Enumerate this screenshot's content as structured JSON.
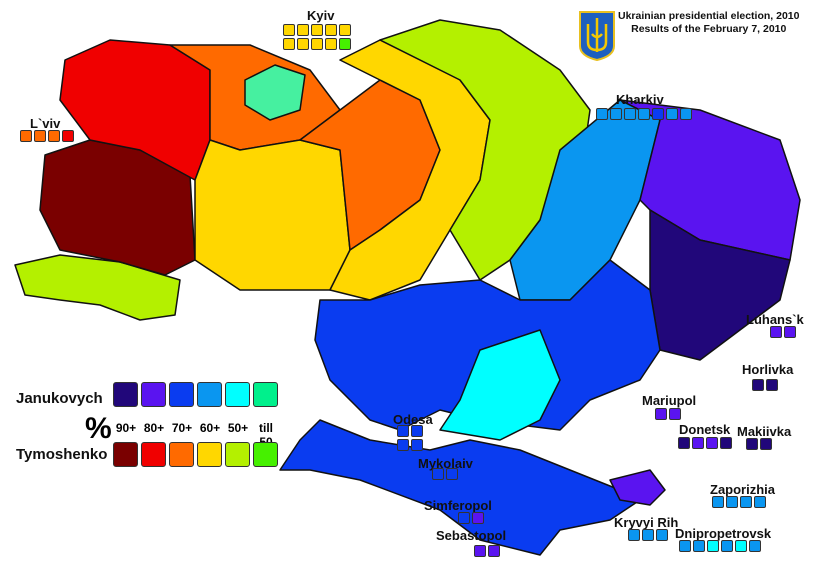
{
  "title": {
    "line1": "Ukrainian presidential election, 2010",
    "line2": "Results of the February 7, 2010"
  },
  "legend": {
    "candidate1": "Janukovych",
    "candidate2": "Tymoshenko",
    "percent_symbol": "%",
    "bins": [
      "90+",
      "80+",
      "70+",
      "60+",
      "50+",
      "till 50"
    ],
    "janukovych_colors": [
      "#21077a",
      "#5a14f0",
      "#0a3cf0",
      "#0a96f0",
      "#00ffff",
      "#00f08c"
    ],
    "tymoshenko_colors": [
      "#7a0000",
      "#f00000",
      "#ff6a00",
      "#ffd700",
      "#b4f000",
      "#46f000"
    ]
  },
  "cities": [
    {
      "name": "Kyiv",
      "boxes": [
        "T60",
        "T60",
        "T60",
        "T60",
        "T60",
        "T60",
        "T60",
        "T60",
        "T60",
        "Tlow"
      ]
    },
    {
      "name": "L`viv",
      "boxes": [
        "T70",
        "T70",
        "T70",
        "T80"
      ]
    },
    {
      "name": "Kharkiv",
      "boxes": [
        "J60",
        "J60",
        "J60",
        "J60",
        "J70",
        "J60",
        "J60"
      ]
    },
    {
      "name": "Luhans`k",
      "boxes": [
        "J80",
        "J80"
      ]
    },
    {
      "name": "Horlivka",
      "boxes": [
        "J90",
        "J90"
      ]
    },
    {
      "name": "Mariupol",
      "boxes": [
        "J80",
        "J80"
      ]
    },
    {
      "name": "Donetsk",
      "boxes": [
        "J90",
        "J80",
        "J80",
        "J90"
      ]
    },
    {
      "name": "Makiivka",
      "boxes": [
        "J90",
        "J90"
      ]
    },
    {
      "name": "Odesa",
      "boxes": [
        "J70",
        "J70",
        "J70",
        "J70"
      ]
    },
    {
      "name": "Mykolaiv",
      "boxes": [
        "J70",
        "J70"
      ]
    },
    {
      "name": "Simferopol",
      "boxes": [
        "J70",
        "J80"
      ]
    },
    {
      "name": "Sebastopol",
      "boxes": [
        "J80",
        "J80"
      ]
    },
    {
      "name": "Zaporizhia",
      "boxes": [
        "J60",
        "J60",
        "J60",
        "J60"
      ]
    },
    {
      "name": "Kryvyi Rih",
      "boxes": [
        "J60",
        "J60",
        "J60"
      ]
    },
    {
      "name": "Dnipropetrovsk",
      "boxes": [
        "J60",
        "J60",
        "J50",
        "J60",
        "J50",
        "J60"
      ]
    }
  ]
}
